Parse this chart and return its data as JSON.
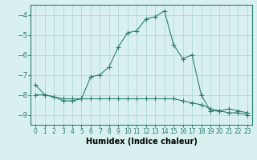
{
  "x": [
    0,
    1,
    2,
    3,
    4,
    5,
    6,
    7,
    8,
    9,
    10,
    11,
    12,
    13,
    14,
    15,
    16,
    17,
    18,
    19,
    20,
    21,
    22,
    23
  ],
  "line1": [
    -7.5,
    -8.0,
    -8.1,
    -8.3,
    -8.3,
    -8.2,
    -7.1,
    -7.0,
    -6.6,
    -5.6,
    -4.9,
    -4.8,
    -4.2,
    -4.1,
    -3.8,
    -5.5,
    -6.2,
    -6.0,
    -8.0,
    -8.8,
    -8.8,
    -8.7,
    -8.8,
    -8.9
  ],
  "line2": [
    -8.0,
    -8.0,
    -8.1,
    -8.2,
    -8.2,
    -8.2,
    -8.2,
    -8.2,
    -8.2,
    -8.2,
    -8.2,
    -8.2,
    -8.2,
    -8.2,
    -8.2,
    -8.2,
    -8.3,
    -8.4,
    -8.5,
    -8.7,
    -8.8,
    -8.9,
    -8.9,
    -9.0
  ],
  "ylim": [
    -9.5,
    -3.5
  ],
  "yticks": [
    -9,
    -8,
    -7,
    -6,
    -5,
    -4
  ],
  "bg_color": "#d8f0f0",
  "grid_color": "#b0d8d8",
  "line_color": "#2e7d6e",
  "marker": "+",
  "markersize": 4,
  "xlabel": "Humidex (Indice chaleur)",
  "xtick_fontsize": 5.5,
  "ytick_fontsize": 6.5,
  "xlabel_fontsize": 7
}
